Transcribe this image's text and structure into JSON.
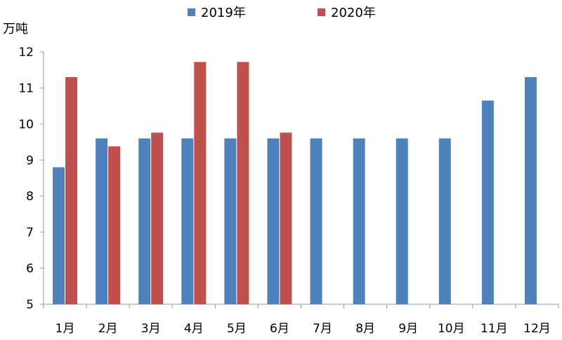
{
  "chart_data": {
    "type": "bar",
    "y_unit_label": "万吨",
    "categories": [
      "1月",
      "2月",
      "3月",
      "4月",
      "5月",
      "6月",
      "7月",
      "8月",
      "9月",
      "10月",
      "11月",
      "12月"
    ],
    "series": [
      {
        "name": "2019年",
        "color": "#4f81bd",
        "values": [
          8.8,
          9.6,
          9.6,
          9.6,
          9.6,
          9.6,
          9.6,
          9.6,
          9.6,
          9.6,
          10.65,
          11.3
        ]
      },
      {
        "name": "2020年",
        "color": "#c0504d",
        "values": [
          11.3,
          9.38,
          9.76,
          11.72,
          11.72,
          9.76,
          null,
          null,
          null,
          null,
          null,
          null
        ]
      }
    ],
    "ylim": [
      5,
      12
    ],
    "yticks": [
      5,
      6,
      7,
      8,
      9,
      10,
      11,
      12
    ],
    "grid": false,
    "legend_position": "top-center"
  }
}
